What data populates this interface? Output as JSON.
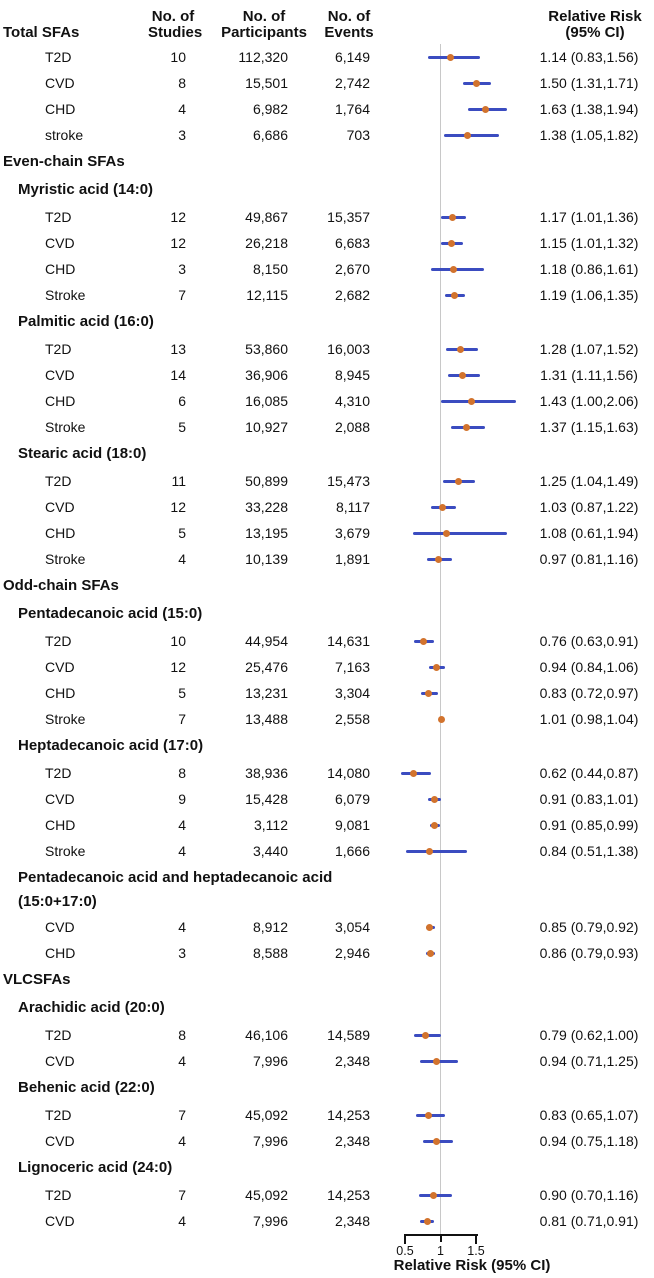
{
  "header": {
    "group": "Total SFAs",
    "studies": [
      "No. of",
      "Studies"
    ],
    "participants": [
      "No. of",
      "Participants"
    ],
    "events": [
      "No. of",
      "Events"
    ],
    "rr": [
      "Relative Risk",
      "(95% CI)"
    ]
  },
  "axis": {
    "ticks": [
      "0.5",
      "1",
      "1.5"
    ],
    "tick_values": [
      0.5,
      1,
      1.5
    ],
    "label": "Relative Risk (95% CI)"
  },
  "colors": {
    "ci_line": "#3b4cc0",
    "point": "#d2732d",
    "refline": "#c8c8c8",
    "text": "#111111"
  },
  "chart_data": {
    "type": "forest",
    "refline_value": 1.0,
    "x_range_shown": [
      0.5,
      1.5
    ],
    "sections": [
      {
        "label": "",
        "level": 0,
        "rows": [
          {
            "outcome": "T2D",
            "studies": "10",
            "participants": "112,320",
            "events": "6,149",
            "est": 1.14,
            "lo": 0.83,
            "hi": 1.56,
            "label": "1.14 (0.83,1.56)"
          },
          {
            "outcome": "CVD",
            "studies": "8",
            "participants": "15,501",
            "events": "2,742",
            "est": 1.5,
            "lo": 1.31,
            "hi": 1.71,
            "label": "1.50 (1.31,1.71)"
          },
          {
            "outcome": "CHD",
            "studies": "4",
            "participants": "6,982",
            "events": "1,764",
            "est": 1.63,
            "lo": 1.38,
            "hi": 1.94,
            "label": "1.63 (1.38,1.94)"
          },
          {
            "outcome": "stroke",
            "studies": "3",
            "participants": "6,686",
            "events": "703",
            "est": 1.38,
            "lo": 1.05,
            "hi": 1.82,
            "label": "1.38 (1.05,1.82)"
          }
        ]
      },
      {
        "label": "Even-chain SFAs",
        "level": 0,
        "rows": []
      },
      {
        "label": "Myristic acid (14:0)",
        "level": 1,
        "rows": [
          {
            "outcome": "T2D",
            "studies": "12",
            "participants": "49,867",
            "events": "15,357",
            "est": 1.17,
            "lo": 1.01,
            "hi": 1.36,
            "label": "1.17 (1.01,1.36)"
          },
          {
            "outcome": "CVD",
            "studies": "12",
            "participants": "26,218",
            "events": "6,683",
            "est": 1.15,
            "lo": 1.01,
            "hi": 1.32,
            "label": "1.15 (1.01,1.32)"
          },
          {
            "outcome": "CHD",
            "studies": "3",
            "participants": "8,150",
            "events": "2,670",
            "est": 1.18,
            "lo": 0.86,
            "hi": 1.61,
            "label": "1.18 (0.86,1.61)"
          },
          {
            "outcome": "Stroke",
            "studies": "7",
            "participants": "12,115",
            "events": "2,682",
            "est": 1.19,
            "lo": 1.06,
            "hi": 1.35,
            "label": "1.19 (1.06,1.35)"
          }
        ]
      },
      {
        "label": "Palmitic acid (16:0)",
        "level": 1,
        "rows": [
          {
            "outcome": "T2D",
            "studies": "13",
            "participants": "53,860",
            "events": "16,003",
            "est": 1.28,
            "lo": 1.07,
            "hi": 1.52,
            "label": "1.28 (1.07,1.52)"
          },
          {
            "outcome": "CVD",
            "studies": "14",
            "participants": "36,906",
            "events": "8,945",
            "est": 1.31,
            "lo": 1.11,
            "hi": 1.56,
            "label": "1.31 (1.11,1.56)"
          },
          {
            "outcome": "CHD",
            "studies": "6",
            "participants": "16,085",
            "events": "4,310",
            "est": 1.43,
            "lo": 1.0,
            "hi": 2.06,
            "label": "1.43 (1.00,2.06)"
          },
          {
            "outcome": "Stroke",
            "studies": "5",
            "participants": "10,927",
            "events": "2,088",
            "est": 1.37,
            "lo": 1.15,
            "hi": 1.63,
            "label": "1.37 (1.15,1.63)"
          }
        ]
      },
      {
        "label": "Stearic acid (18:0)",
        "level": 1,
        "rows": [
          {
            "outcome": "T2D",
            "studies": "11",
            "participants": "50,899",
            "events": "15,473",
            "est": 1.25,
            "lo": 1.04,
            "hi": 1.49,
            "label": "1.25 (1.04,1.49)"
          },
          {
            "outcome": "CVD",
            "studies": "12",
            "participants": "33,228",
            "events": "8,117",
            "est": 1.03,
            "lo": 0.87,
            "hi": 1.22,
            "label": "1.03 (0.87,1.22)"
          },
          {
            "outcome": "CHD",
            "studies": "5",
            "participants": "13,195",
            "events": "3,679",
            "est": 1.08,
            "lo": 0.61,
            "hi": 1.94,
            "label": "1.08 (0.61,1.94)"
          },
          {
            "outcome": "Stroke",
            "studies": "4",
            "participants": "10,139",
            "events": "1,891",
            "est": 0.97,
            "lo": 0.81,
            "hi": 1.16,
            "label": "0.97 (0.81,1.16)"
          }
        ]
      },
      {
        "label": "Odd-chain SFAs",
        "level": 0,
        "rows": []
      },
      {
        "label": "Pentadecanoic acid (15:0)",
        "level": 1,
        "rows": [
          {
            "outcome": "T2D",
            "studies": "10",
            "participants": "44,954",
            "events": "14,631",
            "est": 0.76,
            "lo": 0.63,
            "hi": 0.91,
            "label": "0.76 (0.63,0.91)"
          },
          {
            "outcome": "CVD",
            "studies": "12",
            "participants": "25,476",
            "events": "7,163",
            "est": 0.94,
            "lo": 0.84,
            "hi": 1.06,
            "label": "0.94 (0.84,1.06)"
          },
          {
            "outcome": "CHD",
            "studies": "5",
            "participants": "13,231",
            "events": "3,304",
            "est": 0.83,
            "lo": 0.72,
            "hi": 0.97,
            "label": "0.83 (0.72,0.97)"
          },
          {
            "outcome": "Stroke",
            "studies": "7",
            "participants": "13,488",
            "events": "2,558",
            "est": 1.01,
            "lo": 0.98,
            "hi": 1.04,
            "label": "1.01 (0.98,1.04)"
          }
        ]
      },
      {
        "label": "Heptadecanoic acid (17:0)",
        "level": 1,
        "rows": [
          {
            "outcome": "T2D",
            "studies": "8",
            "participants": "38,936",
            "events": "14,080",
            "est": 0.62,
            "lo": 0.44,
            "hi": 0.87,
            "label": "0.62 (0.44,0.87)"
          },
          {
            "outcome": "CVD",
            "studies": "9",
            "participants": "15,428",
            "events": "6,079",
            "est": 0.91,
            "lo": 0.83,
            "hi": 1.01,
            "label": "0.91 (0.83,1.01)"
          },
          {
            "outcome": "CHD",
            "studies": "4",
            "participants": "3,112",
            "events": "9,081",
            "est": 0.91,
            "lo": 0.85,
            "hi": 0.99,
            "label": "0.91 (0.85,0.99)"
          },
          {
            "outcome": "Stroke",
            "studies": "4",
            "participants": "3,440",
            "events": "1,666",
            "est": 0.84,
            "lo": 0.51,
            "hi": 1.38,
            "label": "0.84 (0.51,1.38)"
          }
        ]
      },
      {
        "label": "Pentadecanoic acid and heptadecanoic acid\n(15:0+17:0)",
        "level": 1,
        "rows": [
          {
            "outcome": "CVD",
            "studies": "4",
            "participants": "8,912",
            "events": "3,054",
            "est": 0.85,
            "lo": 0.79,
            "hi": 0.92,
            "label": "0.85 (0.79,0.92)"
          },
          {
            "outcome": "CHD",
            "studies": "3",
            "participants": "8,588",
            "events": "2,946",
            "est": 0.86,
            "lo": 0.79,
            "hi": 0.93,
            "label": "0.86 (0.79,0.93)"
          }
        ]
      },
      {
        "label": "VLCSFAs",
        "level": 0,
        "rows": []
      },
      {
        "label": "Arachidic acid (20:0)",
        "level": 1,
        "rows": [
          {
            "outcome": "T2D",
            "studies": "8",
            "participants": "46,106",
            "events": "14,589",
            "est": 0.79,
            "lo": 0.62,
            "hi": 1.0,
            "label": "0.79 (0.62,1.00)"
          },
          {
            "outcome": "CVD",
            "studies": "4",
            "participants": "7,996",
            "events": "2,348",
            "est": 0.94,
            "lo": 0.71,
            "hi": 1.25,
            "label": "0.94 (0.71,1.25)"
          }
        ]
      },
      {
        "label": "Behenic acid (22:0)",
        "level": 1,
        "rows": [
          {
            "outcome": "T2D",
            "studies": "7",
            "participants": "45,092",
            "events": "14,253",
            "est": 0.83,
            "lo": 0.65,
            "hi": 1.07,
            "label": "0.83 (0.65,1.07)"
          },
          {
            "outcome": "CVD",
            "studies": "4",
            "participants": "7,996",
            "events": "2,348",
            "est": 0.94,
            "lo": 0.75,
            "hi": 1.18,
            "label": "0.94 (0.75,1.18)"
          }
        ]
      },
      {
        "label": "Lignoceric acid (24:0)",
        "level": 1,
        "rows": [
          {
            "outcome": "T2D",
            "studies": "7",
            "participants": "45,092",
            "events": "14,253",
            "est": 0.9,
            "lo": 0.7,
            "hi": 1.16,
            "label": "0.90 (0.70,1.16)"
          },
          {
            "outcome": "CVD",
            "studies": "4",
            "participants": "7,996",
            "events": "2,348",
            "est": 0.81,
            "lo": 0.71,
            "hi": 0.91,
            "label": "0.81 (0.71,0.91)"
          }
        ]
      }
    ]
  }
}
